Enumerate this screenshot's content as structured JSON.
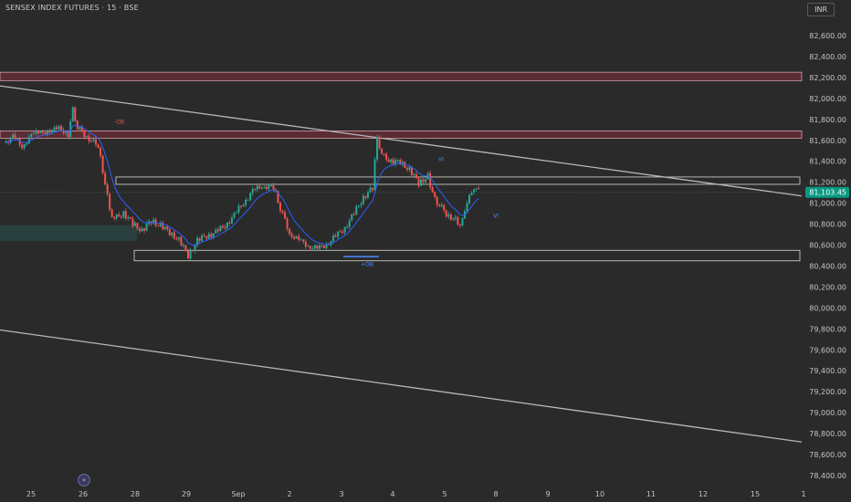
{
  "header": {
    "title": "SENSEX INDEX FUTURES · 15 · BSE",
    "currency": "INR"
  },
  "colors": {
    "background": "#2a2a2a",
    "bull": "#26a69a",
    "bear": "#ef5350",
    "ma": "#2962ff",
    "price_tag": "#089981"
  },
  "chart_data": {
    "type": "candlestick",
    "title": "SENSEX INDEX FUTURES · 15 · BSE",
    "ylim": [
      78300,
      82750
    ],
    "y_ticks": [
      "82,600.00",
      "82,400.00",
      "82,200.00",
      "82,000.00",
      "81,800.00",
      "81,600.00",
      "81,400.00",
      "81,200.00",
      "81,000.00",
      "80,800.00",
      "80,600.00",
      "80,400.00",
      "80,200.00",
      "80,000.00",
      "79,800.00",
      "79,600.00",
      "79,400.00",
      "79,200.00",
      "79,000.00",
      "78,800.00",
      "78,600.00",
      "78,400.00"
    ],
    "x_ticks": [
      "25",
      "26",
      "28",
      "29",
      "Sep",
      "2",
      "3",
      "4",
      "5",
      "8",
      "9",
      "10",
      "11",
      "12",
      "15",
      "1"
    ],
    "last_price": "81,103.45",
    "price_path": [
      [
        0,
        81580
      ],
      [
        2,
        81630
      ],
      [
        4,
        81550
      ],
      [
        6,
        81640
      ],
      [
        8,
        81700
      ],
      [
        10,
        81660
      ],
      [
        12,
        81750
      ],
      [
        14,
        81620
      ],
      [
        15,
        81900
      ],
      [
        16,
        81720
      ],
      [
        18,
        81640
      ],
      [
        20,
        81560
      ],
      [
        21,
        81450
      ],
      [
        22,
        81180
      ],
      [
        23,
        80940
      ],
      [
        24,
        80850
      ],
      [
        26,
        80910
      ],
      [
        28,
        80800
      ],
      [
        30,
        80740
      ],
      [
        32,
        80830
      ],
      [
        34,
        80790
      ],
      [
        36,
        80720
      ],
      [
        38,
        80650
      ],
      [
        40,
        80500
      ],
      [
        42,
        80640
      ],
      [
        44,
        80690
      ],
      [
        46,
        80720
      ],
      [
        48,
        80790
      ],
      [
        50,
        80880
      ],
      [
        52,
        81010
      ],
      [
        54,
        81110
      ],
      [
        56,
        81170
      ],
      [
        58,
        81150
      ],
      [
        59,
        81090
      ],
      [
        60,
        80950
      ],
      [
        62,
        80720
      ],
      [
        64,
        80640
      ],
      [
        66,
        80600
      ],
      [
        68,
        80560
      ],
      [
        70,
        80610
      ],
      [
        72,
        80680
      ],
      [
        74,
        80770
      ],
      [
        76,
        80900
      ],
      [
        78,
        81060
      ],
      [
        80,
        81140
      ],
      [
        81,
        81640
      ],
      [
        82,
        81460
      ],
      [
        84,
        81400
      ],
      [
        86,
        81390
      ],
      [
        88,
        81320
      ],
      [
        90,
        81190
      ],
      [
        92,
        81260
      ],
      [
        93,
        81080
      ],
      [
        94,
        81010
      ],
      [
        96,
        80900
      ],
      [
        98,
        80840
      ],
      [
        99,
        80760
      ],
      [
        100,
        80950
      ],
      [
        101,
        81050
      ],
      [
        102,
        81160
      ],
      [
        103,
        81110
      ]
    ],
    "zones": [
      {
        "type": "supply",
        "y1": 82250,
        "y2": 82170
      },
      {
        "type": "supply",
        "y1": 81690,
        "y2": 81620
      },
      {
        "type": "outline",
        "y1": 81250,
        "y2": 81180
      },
      {
        "type": "outline",
        "y1": 80550,
        "y2": 80450
      },
      {
        "type": "demand",
        "y1": 80790,
        "y2": 80640
      }
    ],
    "trendlines": [
      {
        "from": [
          0,
          82120
        ],
        "to": [
          165,
          81070
        ]
      },
      {
        "from": [
          0,
          79790
        ],
        "to": [
          165,
          78720
        ]
      }
    ],
    "annotations": [
      "-OB",
      "+OB",
      "VI",
      "VI"
    ]
  }
}
